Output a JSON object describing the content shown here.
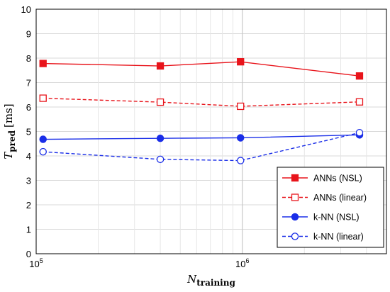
{
  "chart_data": {
    "type": "line",
    "title": "",
    "xlabel": {
      "main": "N",
      "sub": "training"
    },
    "ylabel": {
      "main": "T",
      "sub": "pred",
      "unit": "[ms]"
    },
    "xscale": "log",
    "xlim": [
      100000,
      5000000
    ],
    "ylim": [
      0,
      10
    ],
    "yticks": [
      0,
      1,
      2,
      3,
      4,
      5,
      6,
      7,
      8,
      9,
      10
    ],
    "xticks": [
      {
        "value": 100000,
        "base": "10",
        "exp": "5"
      },
      {
        "value": 1000000,
        "base": "10",
        "exp": "6"
      }
    ],
    "grid": true,
    "legend_position": "bottom-right",
    "series": [
      {
        "name": "ANNs (NSL)",
        "color": "#e8141b",
        "dash": "solid",
        "marker": "square",
        "filled": true,
        "x": [
          108000,
          400000,
          980000,
          3700000
        ],
        "y": [
          7.78,
          7.68,
          7.85,
          7.27
        ]
      },
      {
        "name": "ANNs (linear)",
        "color": "#e8141b",
        "dash": "dashed",
        "marker": "square",
        "filled": false,
        "x": [
          108000,
          400000,
          980000,
          3700000
        ],
        "y": [
          6.36,
          6.2,
          6.03,
          6.21
        ]
      },
      {
        "name": "k-NN (NSL)",
        "color": "#1a2ee8",
        "dash": "solid",
        "marker": "circle",
        "filled": true,
        "x": [
          108000,
          400000,
          980000,
          3700000
        ],
        "y": [
          4.68,
          4.72,
          4.74,
          4.86
        ]
      },
      {
        "name": "k-NN (linear)",
        "color": "#1a2ee8",
        "dash": "dashed",
        "marker": "circle",
        "filled": false,
        "x": [
          108000,
          400000,
          980000,
          3700000
        ],
        "y": [
          4.17,
          3.86,
          3.81,
          4.95
        ]
      }
    ]
  }
}
